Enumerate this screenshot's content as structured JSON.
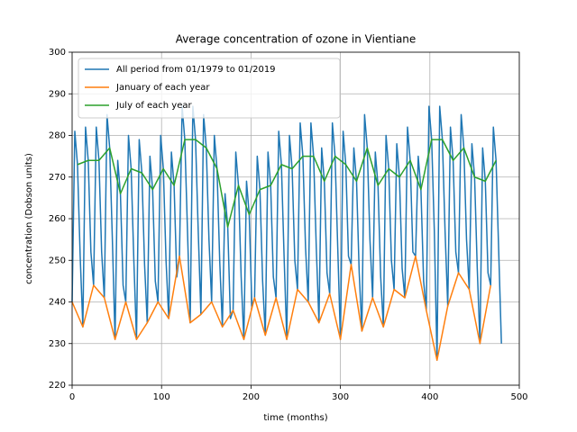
{
  "chart_data": {
    "type": "line",
    "title": "Average concentration of ozone in Vientiane",
    "xlabel": "time (months)",
    "ylabel": "concentration (Dobson units)",
    "xlim": [
      0,
      500
    ],
    "xticks": [
      0,
      100,
      200,
      300,
      400,
      500
    ],
    "ylim": [
      220,
      300
    ],
    "yticks": [
      220,
      230,
      240,
      250,
      260,
      270,
      280,
      290,
      300
    ],
    "grid": true,
    "legend": "upper-left",
    "series": [
      {
        "name": "All period from 01/1979 to 01/2019",
        "color": "#1f77b4",
        "x": [
          0,
          3,
          6,
          9,
          12,
          15,
          18,
          21,
          24,
          27,
          30,
          33,
          36,
          39,
          42,
          45,
          48,
          51,
          54,
          57,
          60,
          63,
          66,
          69,
          72,
          75,
          78,
          81,
          84,
          87,
          90,
          93,
          96,
          99,
          102,
          105,
          108,
          111,
          114,
          117,
          120,
          123,
          126,
          129,
          132,
          135,
          138,
          141,
          144,
          147,
          150,
          153,
          156,
          159,
          162,
          165,
          168,
          171,
          174,
          177,
          180,
          183,
          186,
          189,
          192,
          195,
          198,
          201,
          204,
          207,
          210,
          213,
          216,
          219,
          222,
          225,
          228,
          231,
          234,
          237,
          240,
          243,
          246,
          249,
          252,
          255,
          258,
          261,
          264,
          267,
          270,
          273,
          276,
          279,
          282,
          285,
          288,
          291,
          294,
          297,
          300,
          303,
          306,
          309,
          312,
          315,
          318,
          321,
          324,
          327,
          330,
          333,
          336,
          339,
          342,
          345,
          348,
          351,
          354,
          357,
          360,
          363,
          366,
          369,
          372,
          375,
          378,
          381,
          384,
          387,
          390,
          393,
          396,
          399,
          402,
          405,
          408,
          411,
          414,
          417,
          420,
          423,
          426,
          429,
          432,
          435,
          438,
          441,
          444,
          447,
          450,
          453,
          456,
          459,
          462,
          465,
          468,
          471,
          474,
          477,
          480
        ],
        "values": [
          240,
          281,
          273,
          251,
          234,
          282,
          274,
          252,
          244,
          282,
          274,
          252,
          241,
          285,
          277,
          255,
          231,
          274,
          266,
          244,
          240,
          280,
          272,
          250,
          231,
          279,
          271,
          249,
          235,
          275,
          267,
          245,
          240,
          280,
          272,
          250,
          236,
          276,
          268,
          246,
          251,
          287,
          279,
          257,
          235,
          287,
          279,
          257,
          237,
          285,
          277,
          255,
          240,
          280,
          272,
          250,
          234,
          266,
          258,
          236,
          238,
          276,
          268,
          246,
          231,
          269,
          261,
          239,
          241,
          275,
          267,
          245,
          232,
          276,
          268,
          246,
          241,
          281,
          273,
          251,
          231,
          280,
          272,
          250,
          243,
          283,
          275,
          253,
          240,
          283,
          275,
          253,
          235,
          277,
          269,
          247,
          242,
          283,
          275,
          253,
          231,
          281,
          273,
          251,
          249,
          277,
          269,
          247,
          233,
          285,
          277,
          255,
          241,
          276,
          268,
          246,
          234,
          280,
          272,
          250,
          243,
          278,
          270,
          248,
          241,
          282,
          274,
          252,
          251,
          275,
          267,
          245,
          238,
          287,
          279,
          257,
          226,
          287,
          279,
          257,
          239,
          282,
          274,
          252,
          247,
          285,
          277,
          255,
          243,
          278,
          270,
          248,
          230,
          277,
          269,
          247,
          244,
          282,
          274,
          252,
          230
        ]
      },
      {
        "name": "January of each year",
        "color": "#ff7f0e",
        "x": [
          0,
          12,
          24,
          36,
          48,
          60,
          72,
          84,
          96,
          108,
          120,
          132,
          144,
          156,
          168,
          180,
          192,
          204,
          216,
          228,
          240,
          252,
          264,
          276,
          288,
          300,
          312,
          324,
          336,
          348,
          360,
          372,
          384,
          396,
          408,
          420,
          432,
          444,
          456,
          468
        ],
        "values": [
          240,
          234,
          244,
          241,
          231,
          240,
          231,
          235,
          240,
          236,
          251,
          235,
          237,
          240,
          234,
          238,
          231,
          241,
          232,
          241,
          231,
          243,
          240,
          235,
          242,
          231,
          249,
          233,
          241,
          234,
          243,
          241,
          251,
          238,
          226,
          239,
          247,
          243,
          230,
          244
        ]
      },
      {
        "name": "July of each year",
        "color": "#2ca02c",
        "x": [
          6,
          18,
          30,
          42,
          54,
          66,
          78,
          90,
          102,
          114,
          126,
          138,
          150,
          162,
          174,
          186,
          198,
          210,
          222,
          234,
          246,
          258,
          270,
          282,
          294,
          306,
          318,
          330,
          342,
          354,
          366,
          378,
          390,
          402,
          414,
          426,
          438,
          450,
          462,
          474
        ],
        "values": [
          273,
          274,
          274,
          277,
          266,
          272,
          271,
          267,
          272,
          268,
          279,
          279,
          277,
          272,
          258,
          268,
          261,
          267,
          268,
          273,
          272,
          275,
          275,
          269,
          275,
          273,
          269,
          277,
          268,
          272,
          270,
          274,
          267,
          279,
          279,
          274,
          277,
          270,
          269,
          274
        ]
      }
    ]
  }
}
